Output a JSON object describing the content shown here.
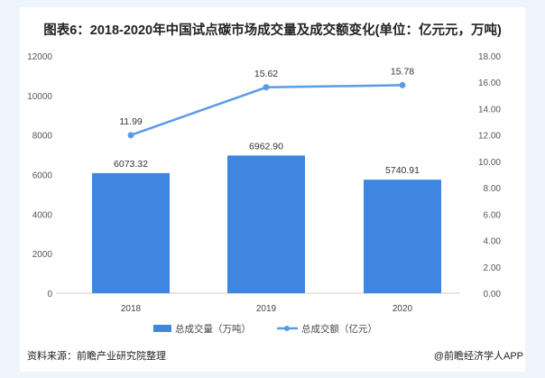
{
  "chart_data": {
    "type": "bar+line",
    "title": "图表6：2018-2020年中国试点碳市场成交量及成交额变化(单位：亿元元，万吨)",
    "categories": [
      "2018",
      "2019",
      "2020"
    ],
    "series": [
      {
        "name": "总成交量（万吨）",
        "type": "bar",
        "axis": "left",
        "values": [
          6073.32,
          6962.9,
          5740.91
        ],
        "labels": [
          "6073.32",
          "6962.90",
          "5740.91"
        ],
        "color": "#3f86e0"
      },
      {
        "name": "总成交额（亿元）",
        "type": "line",
        "axis": "right",
        "values": [
          11.99,
          15.62,
          15.78
        ],
        "labels": [
          "11.99",
          "15.62",
          "15.78"
        ],
        "color": "#5b9be6"
      }
    ],
    "left_axis": {
      "ylim": [
        0,
        12000
      ],
      "ticks": [
        "0",
        "2000",
        "4000",
        "6000",
        "8000",
        "10000",
        "12000"
      ]
    },
    "right_axis": {
      "ylim": [
        0,
        18
      ],
      "ticks": [
        "0.00",
        "2.00",
        "4.00",
        "6.00",
        "8.00",
        "10.00",
        "12.00",
        "14.00",
        "16.00",
        "18.00"
      ]
    },
    "grid": false,
    "legend": "bottom"
  },
  "footer": {
    "source": "资料来源：前瞻产业研究院整理",
    "brand": "@前瞻经济学人APP"
  }
}
